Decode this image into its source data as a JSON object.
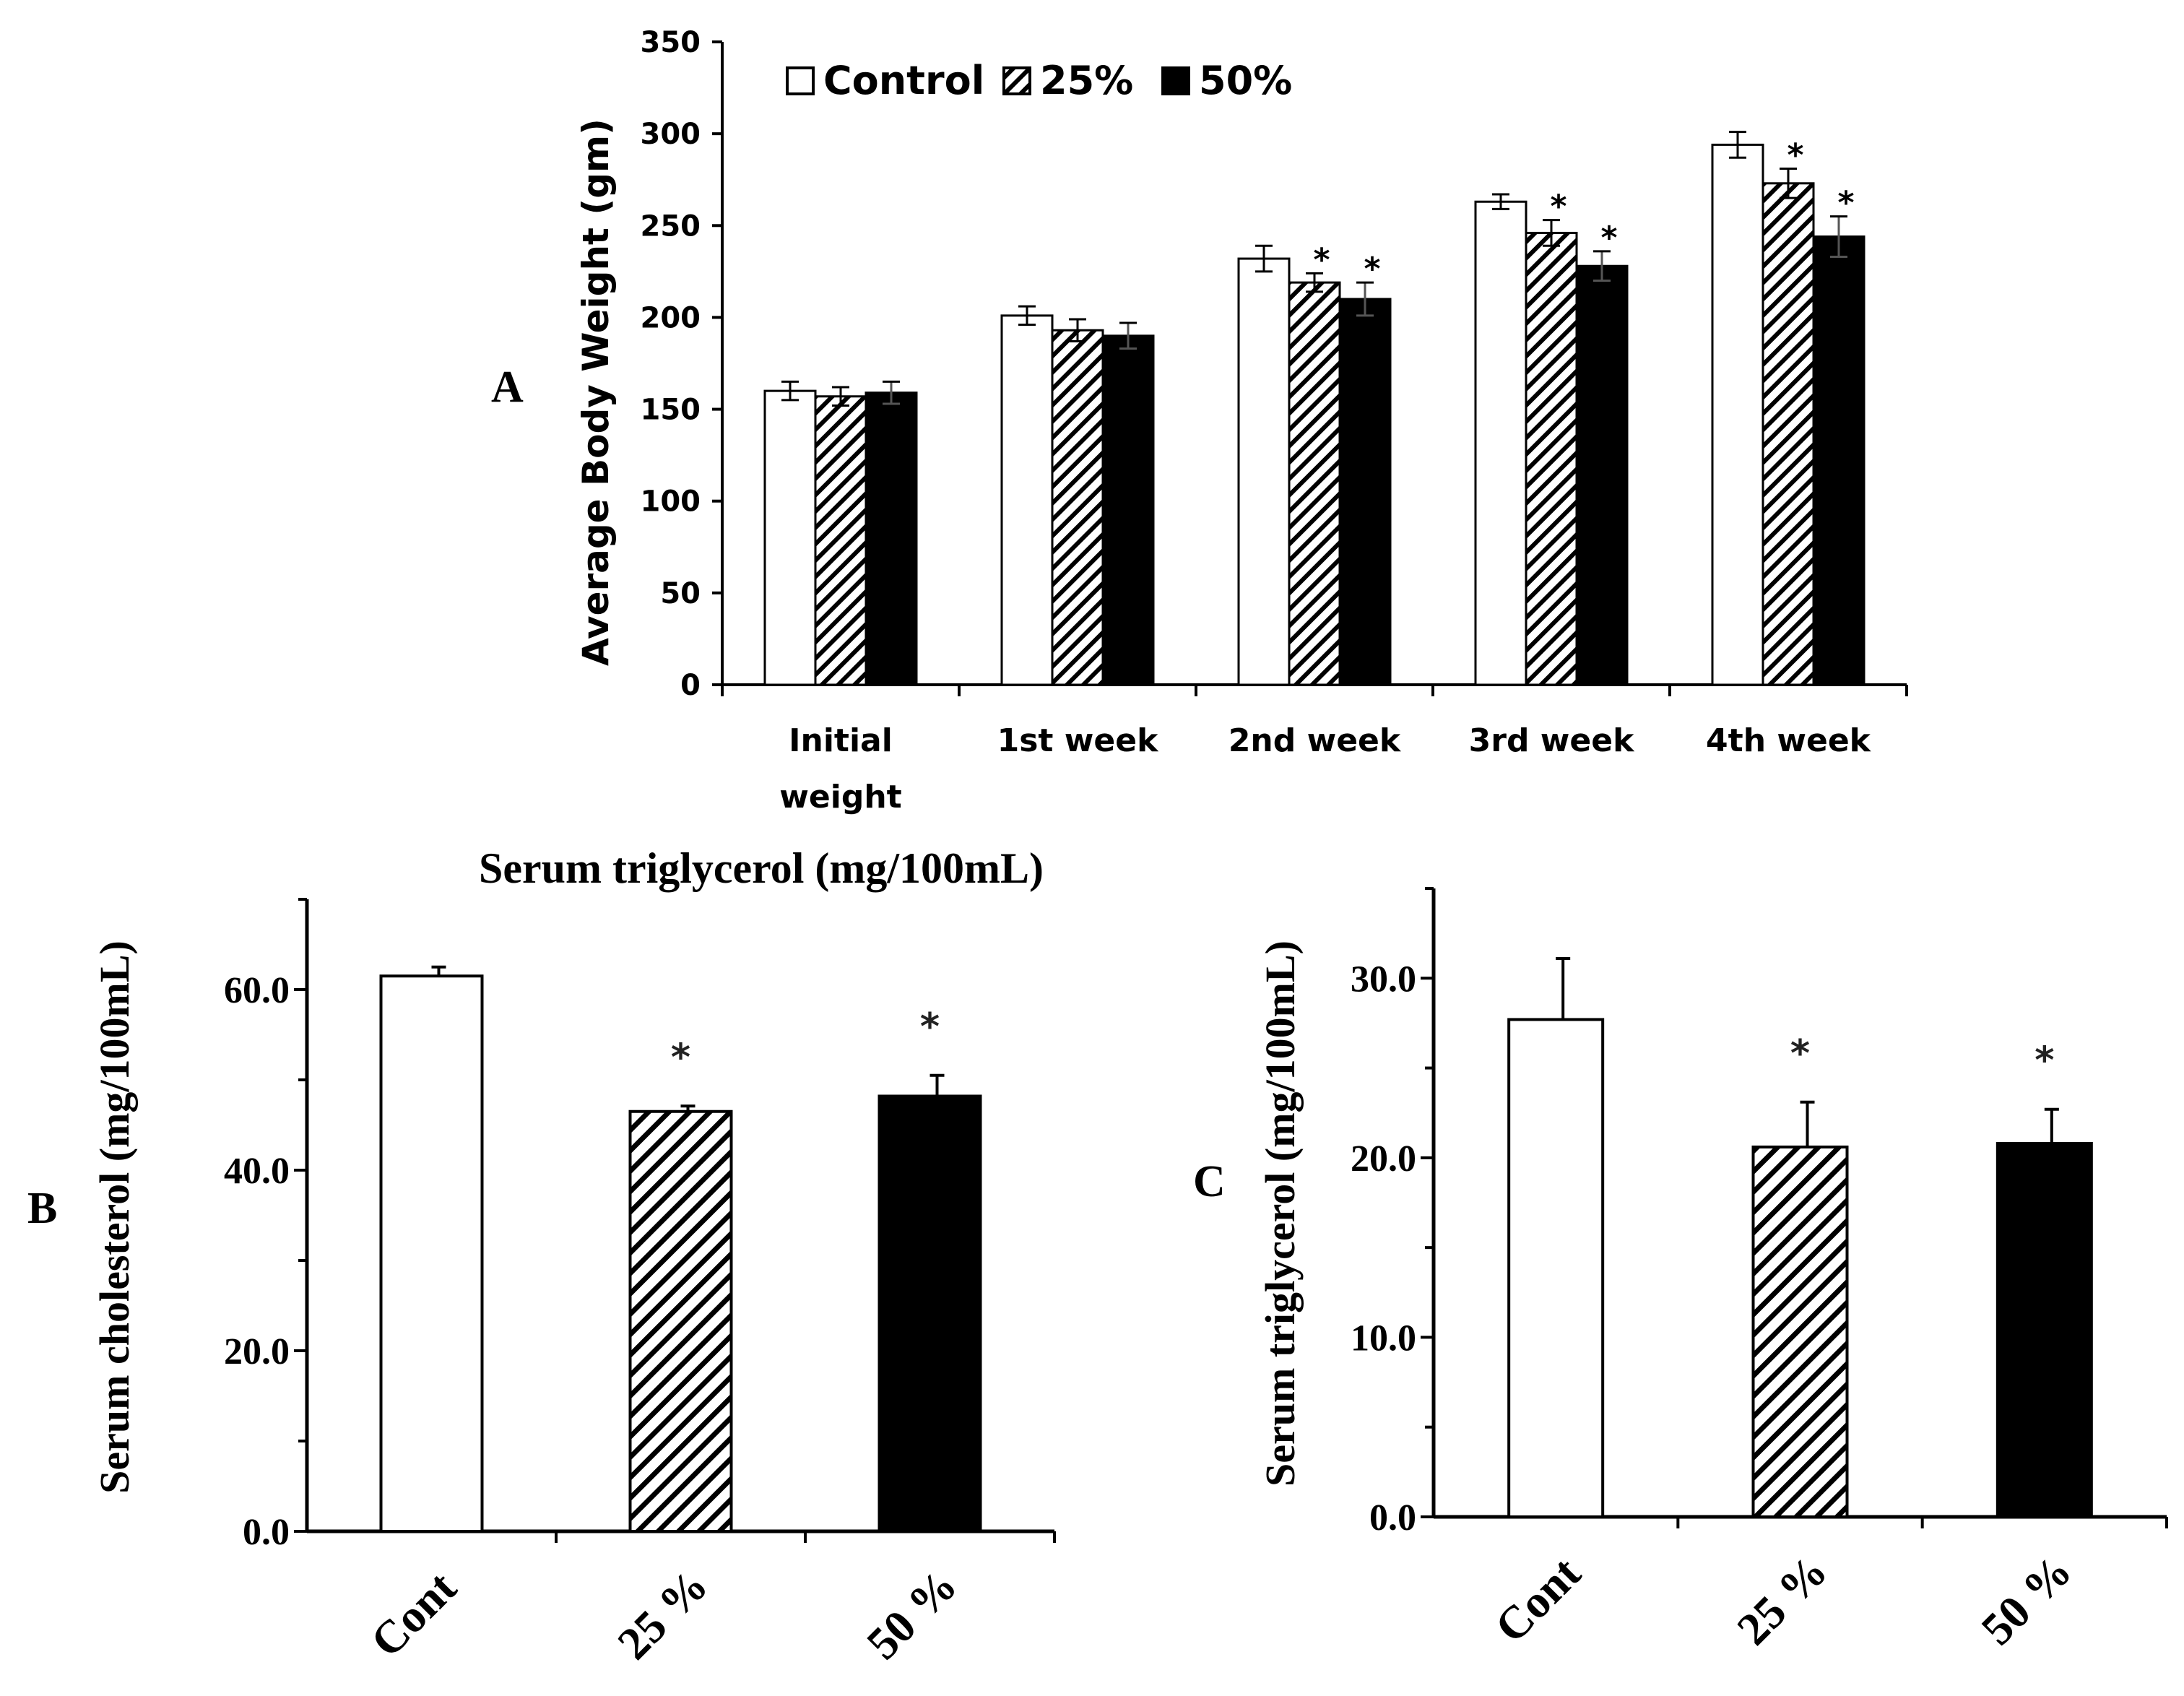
{
  "colors": {
    "control": "#ffffff",
    "p25_stripe": "#000000",
    "p50": "#000000",
    "axis": "#000000"
  },
  "chart_data": [
    {
      "panel": "A",
      "type": "bar",
      "title": "",
      "xlabel": "",
      "ylabel": "Average Body Weight (gm)",
      "ylim": [
        0,
        350
      ],
      "yticks": [
        0,
        50,
        100,
        150,
        200,
        250,
        300,
        350
      ],
      "ytick_labels": [
        "0",
        "50",
        "100",
        "150",
        "200",
        "250",
        "300",
        "350"
      ],
      "categories": [
        [
          "Initial",
          "weight"
        ],
        [
          "1st week"
        ],
        [
          "2nd week"
        ],
        [
          "3rd week"
        ],
        [
          "4th week"
        ]
      ],
      "legend": [
        "Control",
        "25%",
        "50%"
      ],
      "legend_position": "top-left",
      "series": [
        {
          "name": "Control",
          "style": "white",
          "values": [
            160,
            201,
            232,
            263,
            294
          ],
          "errors": [
            5,
            5,
            7,
            4,
            7
          ],
          "stars": [
            false,
            false,
            false,
            false,
            false
          ]
        },
        {
          "name": "25%",
          "style": "hatch",
          "values": [
            157,
            193,
            219,
            246,
            273
          ],
          "errors": [
            5,
            6,
            5,
            7,
            8
          ],
          "stars": [
            false,
            false,
            true,
            true,
            true
          ]
        },
        {
          "name": "50%",
          "style": "black",
          "values": [
            159,
            190,
            210,
            228,
            244
          ],
          "errors": [
            6,
            7,
            9,
            8,
            11
          ],
          "stars": [
            false,
            false,
            true,
            true,
            true
          ]
        }
      ],
      "significance_marker": "*"
    },
    {
      "panel": "B",
      "type": "bar",
      "title": "Serum triglycerol (mg/100mL)",
      "xlabel": "",
      "ylabel": "Serum cholesterol (mg/100mL)",
      "ylim": [
        0,
        70
      ],
      "yticks": [
        0,
        20,
        40,
        60
      ],
      "ytick_labels": [
        "0.0",
        "20.0",
        "40.0",
        "60.0"
      ],
      "categories": [
        "Cont",
        "25 %",
        "50 %"
      ],
      "styles": [
        "white",
        "hatch",
        "black"
      ],
      "values": [
        61.5,
        46.5,
        48.2
      ],
      "errors": [
        1.0,
        0.6,
        2.3
      ],
      "stars": [
        false,
        true,
        true
      ],
      "significance_marker": "*"
    },
    {
      "panel": "C",
      "type": "bar",
      "title": "",
      "xlabel": "",
      "ylabel": "Serum triglycerol (mg/100mL)",
      "ylim": [
        0,
        35
      ],
      "yticks": [
        0,
        10,
        20,
        30
      ],
      "ytick_labels": [
        "0.0",
        "10.0",
        "20.0",
        "30.0"
      ],
      "categories": [
        "Cont",
        "25 %",
        "50 %"
      ],
      "styles": [
        "white",
        "hatch",
        "black"
      ],
      "values": [
        27.7,
        20.6,
        20.8
      ],
      "errors": [
        3.4,
        2.5,
        1.9
      ],
      "stars": [
        false,
        true,
        true
      ],
      "significance_marker": "*"
    }
  ],
  "panel_labels": {
    "a": "A",
    "b": "B",
    "c": "C"
  }
}
